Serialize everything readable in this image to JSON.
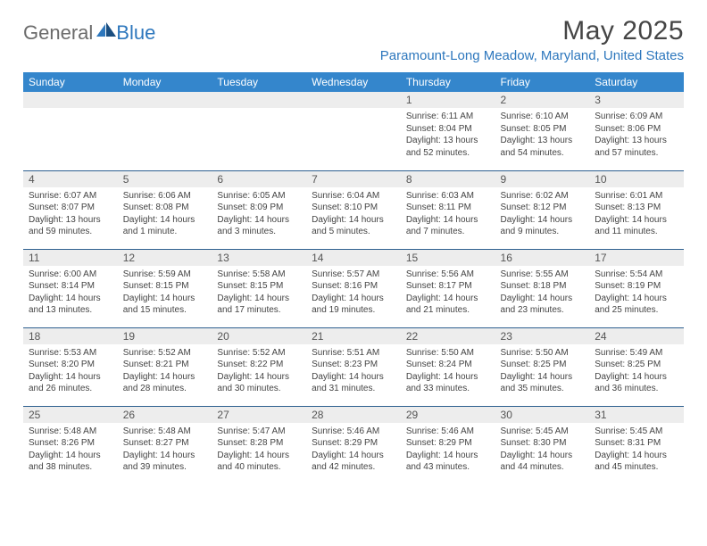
{
  "brand": {
    "part1": "General",
    "part2": "Blue"
  },
  "title": "May 2025",
  "location": "Paramount-Long Meadow, Maryland, United States",
  "colors": {
    "header_bg": "#3486cc",
    "header_text": "#ffffff",
    "daynum_bg": "#ededed",
    "row_border": "#2d5f8f",
    "brand_gray": "#6b6b6b",
    "brand_blue": "#2d77bd"
  },
  "weekdays": [
    "Sunday",
    "Monday",
    "Tuesday",
    "Wednesday",
    "Thursday",
    "Friday",
    "Saturday"
  ],
  "weeks": [
    [
      {
        "n": "",
        "sr": "",
        "ss": "",
        "dl": ""
      },
      {
        "n": "",
        "sr": "",
        "ss": "",
        "dl": ""
      },
      {
        "n": "",
        "sr": "",
        "ss": "",
        "dl": ""
      },
      {
        "n": "",
        "sr": "",
        "ss": "",
        "dl": ""
      },
      {
        "n": "1",
        "sr": "Sunrise: 6:11 AM",
        "ss": "Sunset: 8:04 PM",
        "dl": "Daylight: 13 hours and 52 minutes."
      },
      {
        "n": "2",
        "sr": "Sunrise: 6:10 AM",
        "ss": "Sunset: 8:05 PM",
        "dl": "Daylight: 13 hours and 54 minutes."
      },
      {
        "n": "3",
        "sr": "Sunrise: 6:09 AM",
        "ss": "Sunset: 8:06 PM",
        "dl": "Daylight: 13 hours and 57 minutes."
      }
    ],
    [
      {
        "n": "4",
        "sr": "Sunrise: 6:07 AM",
        "ss": "Sunset: 8:07 PM",
        "dl": "Daylight: 13 hours and 59 minutes."
      },
      {
        "n": "5",
        "sr": "Sunrise: 6:06 AM",
        "ss": "Sunset: 8:08 PM",
        "dl": "Daylight: 14 hours and 1 minute."
      },
      {
        "n": "6",
        "sr": "Sunrise: 6:05 AM",
        "ss": "Sunset: 8:09 PM",
        "dl": "Daylight: 14 hours and 3 minutes."
      },
      {
        "n": "7",
        "sr": "Sunrise: 6:04 AM",
        "ss": "Sunset: 8:10 PM",
        "dl": "Daylight: 14 hours and 5 minutes."
      },
      {
        "n": "8",
        "sr": "Sunrise: 6:03 AM",
        "ss": "Sunset: 8:11 PM",
        "dl": "Daylight: 14 hours and 7 minutes."
      },
      {
        "n": "9",
        "sr": "Sunrise: 6:02 AM",
        "ss": "Sunset: 8:12 PM",
        "dl": "Daylight: 14 hours and 9 minutes."
      },
      {
        "n": "10",
        "sr": "Sunrise: 6:01 AM",
        "ss": "Sunset: 8:13 PM",
        "dl": "Daylight: 14 hours and 11 minutes."
      }
    ],
    [
      {
        "n": "11",
        "sr": "Sunrise: 6:00 AM",
        "ss": "Sunset: 8:14 PM",
        "dl": "Daylight: 14 hours and 13 minutes."
      },
      {
        "n": "12",
        "sr": "Sunrise: 5:59 AM",
        "ss": "Sunset: 8:15 PM",
        "dl": "Daylight: 14 hours and 15 minutes."
      },
      {
        "n": "13",
        "sr": "Sunrise: 5:58 AM",
        "ss": "Sunset: 8:15 PM",
        "dl": "Daylight: 14 hours and 17 minutes."
      },
      {
        "n": "14",
        "sr": "Sunrise: 5:57 AM",
        "ss": "Sunset: 8:16 PM",
        "dl": "Daylight: 14 hours and 19 minutes."
      },
      {
        "n": "15",
        "sr": "Sunrise: 5:56 AM",
        "ss": "Sunset: 8:17 PM",
        "dl": "Daylight: 14 hours and 21 minutes."
      },
      {
        "n": "16",
        "sr": "Sunrise: 5:55 AM",
        "ss": "Sunset: 8:18 PM",
        "dl": "Daylight: 14 hours and 23 minutes."
      },
      {
        "n": "17",
        "sr": "Sunrise: 5:54 AM",
        "ss": "Sunset: 8:19 PM",
        "dl": "Daylight: 14 hours and 25 minutes."
      }
    ],
    [
      {
        "n": "18",
        "sr": "Sunrise: 5:53 AM",
        "ss": "Sunset: 8:20 PM",
        "dl": "Daylight: 14 hours and 26 minutes."
      },
      {
        "n": "19",
        "sr": "Sunrise: 5:52 AM",
        "ss": "Sunset: 8:21 PM",
        "dl": "Daylight: 14 hours and 28 minutes."
      },
      {
        "n": "20",
        "sr": "Sunrise: 5:52 AM",
        "ss": "Sunset: 8:22 PM",
        "dl": "Daylight: 14 hours and 30 minutes."
      },
      {
        "n": "21",
        "sr": "Sunrise: 5:51 AM",
        "ss": "Sunset: 8:23 PM",
        "dl": "Daylight: 14 hours and 31 minutes."
      },
      {
        "n": "22",
        "sr": "Sunrise: 5:50 AM",
        "ss": "Sunset: 8:24 PM",
        "dl": "Daylight: 14 hours and 33 minutes."
      },
      {
        "n": "23",
        "sr": "Sunrise: 5:50 AM",
        "ss": "Sunset: 8:25 PM",
        "dl": "Daylight: 14 hours and 35 minutes."
      },
      {
        "n": "24",
        "sr": "Sunrise: 5:49 AM",
        "ss": "Sunset: 8:25 PM",
        "dl": "Daylight: 14 hours and 36 minutes."
      }
    ],
    [
      {
        "n": "25",
        "sr": "Sunrise: 5:48 AM",
        "ss": "Sunset: 8:26 PM",
        "dl": "Daylight: 14 hours and 38 minutes."
      },
      {
        "n": "26",
        "sr": "Sunrise: 5:48 AM",
        "ss": "Sunset: 8:27 PM",
        "dl": "Daylight: 14 hours and 39 minutes."
      },
      {
        "n": "27",
        "sr": "Sunrise: 5:47 AM",
        "ss": "Sunset: 8:28 PM",
        "dl": "Daylight: 14 hours and 40 minutes."
      },
      {
        "n": "28",
        "sr": "Sunrise: 5:46 AM",
        "ss": "Sunset: 8:29 PM",
        "dl": "Daylight: 14 hours and 42 minutes."
      },
      {
        "n": "29",
        "sr": "Sunrise: 5:46 AM",
        "ss": "Sunset: 8:29 PM",
        "dl": "Daylight: 14 hours and 43 minutes."
      },
      {
        "n": "30",
        "sr": "Sunrise: 5:45 AM",
        "ss": "Sunset: 8:30 PM",
        "dl": "Daylight: 14 hours and 44 minutes."
      },
      {
        "n": "31",
        "sr": "Sunrise: 5:45 AM",
        "ss": "Sunset: 8:31 PM",
        "dl": "Daylight: 14 hours and 45 minutes."
      }
    ]
  ]
}
